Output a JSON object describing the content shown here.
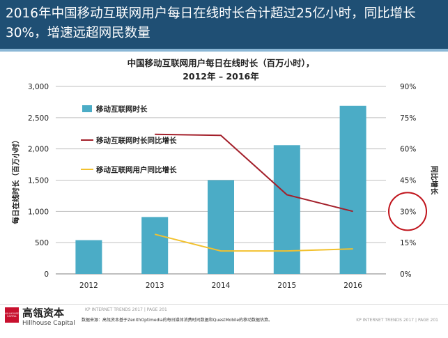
{
  "header": {
    "title": "2016年中国移动互联网用户每日在线时长合计超过25亿小时，同比增长30%，增速远超网民数量"
  },
  "chart_data": {
    "type": "bar",
    "title_line1": "中国移动互联网用户每日在线时长（百万小时），",
    "title_line2": "2012年 – 2016年",
    "categories": [
      "2012",
      "2013",
      "2014",
      "2015",
      "2016"
    ],
    "ylabel": "每日在线时长（百万小时）",
    "y2label": "同比增长",
    "ylim": [
      0,
      3000
    ],
    "y2lim": [
      0,
      90
    ],
    "y_ticks": [
      "0",
      "500",
      "1,000",
      "1,500",
      "2,000",
      "2,500",
      "3,000"
    ],
    "y2_ticks": [
      "0%",
      "15%",
      "30%",
      "45%",
      "60%",
      "75%",
      "90%"
    ],
    "grid": true,
    "legend_position": "top-left",
    "highlight_tick": "30%",
    "series": [
      {
        "name": "移动互联网时长",
        "kind": "bar",
        "axis": "left",
        "color": "#4bacc6",
        "values": [
          540,
          910,
          1500,
          2060,
          2690
        ]
      },
      {
        "name": "移动互联网时长同比增长",
        "kind": "line",
        "axis": "right",
        "color": "#a31f2a",
        "values": [
          null,
          67,
          66.5,
          38,
          30
        ]
      },
      {
        "name": "移动互联网用户同比增长",
        "kind": "line",
        "axis": "right",
        "color": "#f2c12e",
        "values": [
          null,
          19,
          11,
          11,
          12
        ]
      }
    ],
    "highlight_color": "#c0141c"
  },
  "footer": {
    "logo_mark": "HILLHOUSE CAPITAL",
    "logo_cn": "高瓴资本",
    "logo_en": "Hillhouse Capital",
    "source": "数据来源：高瓴资本基于ZenithOptimedia的每日媒体消费时间数据和QuestMobile的移动数据估算。",
    "kp_left": "KP INTERNET TRENDS 2017  |  PAGE 201",
    "kp_right": "KP INTERNET TRENDS 2017  |  PAGE 201"
  }
}
